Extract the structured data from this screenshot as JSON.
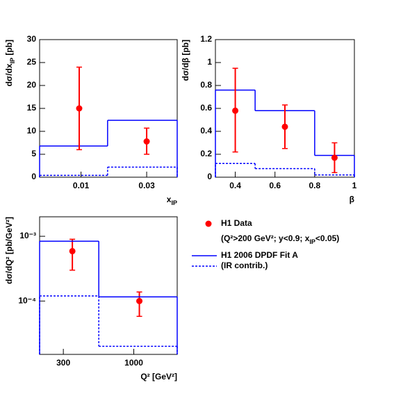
{
  "chart_data": [
    {
      "type": "histogram",
      "xlabel": [
        "x",
        {
          "sub": "IP"
        }
      ],
      "ylabel": [
        "dσ/dx",
        {
          "sub": "IP"
        },
        " [pb]"
      ],
      "xlog": true,
      "ylog": false,
      "xlim": [
        0.005,
        0.05
      ],
      "ylim": [
        0,
        30
      ],
      "xticks": [
        0.01,
        0.03
      ],
      "yticks": [
        0,
        5,
        10,
        15,
        20,
        25,
        30
      ],
      "series": [
        {
          "kind": "step",
          "style": "solid",
          "color": "#0000ff",
          "bins": [
            0.005,
            0.0156,
            0.05
          ],
          "values": [
            6.8,
            12.4
          ]
        },
        {
          "kind": "step",
          "style": "dashed",
          "color": "#0000ff",
          "bins": [
            0.005,
            0.0156,
            0.05
          ],
          "values": [
            0.4,
            2.2
          ]
        },
        {
          "kind": "points",
          "color": "#ff0000",
          "x": [
            0.0097,
            0.03
          ],
          "values": [
            15,
            7.8
          ],
          "err_low": [
            9,
            2.8
          ],
          "err_high": [
            9,
            2.9
          ]
        }
      ]
    },
    {
      "type": "histogram",
      "xlabel": [
        "β"
      ],
      "ylabel": [
        "dσ/dβ [pb]"
      ],
      "xlog": false,
      "ylog": false,
      "xlim": [
        0.3,
        1
      ],
      "ylim": [
        0,
        1.2
      ],
      "xticks": [
        0.4,
        0.6,
        0.8,
        1
      ],
      "yticks": [
        0,
        0.2,
        0.4,
        0.6,
        0.8,
        1,
        1.2
      ],
      "series": [
        {
          "kind": "step",
          "style": "solid",
          "color": "#0000ff",
          "bins": [
            0.3,
            0.5,
            0.8,
            1
          ],
          "values": [
            0.76,
            0.58,
            0.19
          ]
        },
        {
          "kind": "step",
          "style": "dashed",
          "color": "#0000ff",
          "bins": [
            0.3,
            0.5,
            0.8,
            1
          ],
          "values": [
            0.12,
            0.075,
            0.02
          ]
        },
        {
          "kind": "points",
          "color": "#ff0000",
          "x": [
            0.4,
            0.65,
            0.9
          ],
          "values": [
            0.58,
            0.44,
            0.17
          ],
          "err_low": [
            0.36,
            0.19,
            0.13
          ],
          "err_high": [
            0.37,
            0.19,
            0.13
          ]
        }
      ]
    },
    {
      "type": "histogram",
      "xlabel": [
        "Q² [GeV²]"
      ],
      "ylabel": [
        "dσ/dQ² [pb/GeV²]"
      ],
      "xlog": true,
      "ylog": true,
      "xlim": [
        200,
        2100
      ],
      "ylim": [
        1.5e-05,
        0.002
      ],
      "xticks": [
        300,
        1000
      ],
      "yticks": [
        {
          "value": 0.001,
          "label": "10⁻³"
        },
        {
          "value": 0.0001,
          "label": "10⁻⁴"
        }
      ],
      "series": [
        {
          "kind": "points",
          "name": "H1 Data",
          "color": "#ff0000",
          "x": [
            350,
            1100
          ],
          "values": [
            0.00059,
            0.0001
          ],
          "err_low": [
            0.00029,
            4.2e-05
          ],
          "err_high": [
            0.00031,
            3.8e-05
          ]
        },
        {
          "kind": "step",
          "name": "H1 2006 DPDF Fit A",
          "style": "solid",
          "color": "#0000ff",
          "bins": [
            200,
            550,
            2100
          ],
          "values": [
            0.00084,
            0.000116
          ]
        },
        {
          "kind": "step",
          "name": "(IR contrib.)",
          "style": "dashed",
          "color": "#0000ff",
          "bins": [
            200,
            550,
            2100
          ],
          "values": [
            0.00012,
            2e-05
          ]
        }
      ],
      "legend_note": [
        "(Q²>200 GeV²; y<0.9; x",
        {
          "sub": "IP"
        },
        "<0.05)"
      ]
    }
  ]
}
